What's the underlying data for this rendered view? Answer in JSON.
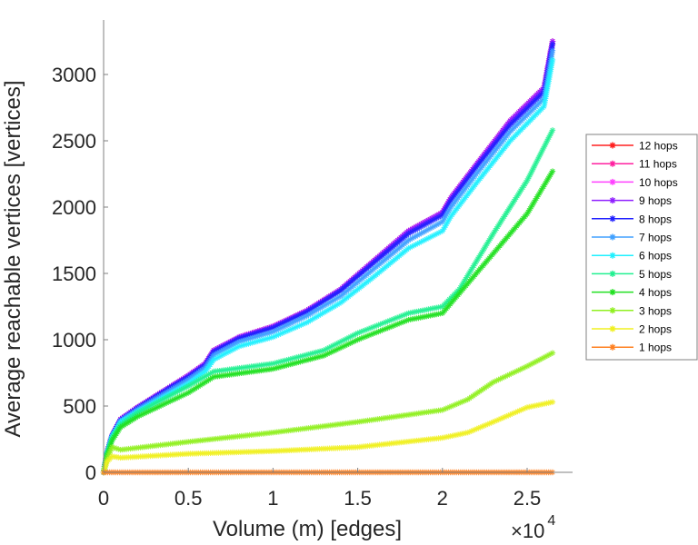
{
  "chart_data": {
    "type": "line",
    "title": "",
    "xlabel": "Volume (m) [edges]",
    "ylabel": "Average reachable vertices [vertices]",
    "x_multiplier_label": "×10",
    "x_multiplier_exp": "4",
    "xlim": [
      0,
      2.75
    ],
    "ylim": [
      0,
      3400
    ],
    "xticks": [
      0,
      0.5,
      1,
      1.5,
      2,
      2.5
    ],
    "xtick_labels": [
      "0",
      "0.5",
      "1",
      "1.5",
      "2",
      "2.5"
    ],
    "yticks": [
      0,
      500,
      1000,
      1500,
      2000,
      2500,
      3000
    ],
    "ytick_labels": [
      "0",
      "500",
      "1000",
      "1500",
      "2000",
      "2500",
      "3000"
    ],
    "grid": false,
    "legend_position": "right",
    "series": [
      {
        "name": "12 hops",
        "color": "#ff2020",
        "x": [
          0,
          0.02,
          0.05,
          0.1,
          0.2,
          0.3,
          0.4,
          0.5,
          0.6,
          0.65,
          0.8,
          1.0,
          1.2,
          1.4,
          1.6,
          1.8,
          2.0,
          2.05,
          2.2,
          2.4,
          2.6,
          2.65
        ],
        "y": [
          0,
          150,
          280,
          400,
          490,
          570,
          650,
          730,
          820,
          920,
          1020,
          1100,
          1220,
          1380,
          1600,
          1820,
          1960,
          2070,
          2320,
          2650,
          2900,
          3250
        ]
      },
      {
        "name": "11 hops",
        "color": "#ff20a0",
        "x": [
          0,
          0.02,
          0.05,
          0.1,
          0.2,
          0.3,
          0.4,
          0.5,
          0.6,
          0.65,
          0.8,
          1.0,
          1.2,
          1.4,
          1.6,
          1.8,
          2.0,
          2.05,
          2.2,
          2.4,
          2.6,
          2.65
        ],
        "y": [
          0,
          150,
          280,
          400,
          490,
          570,
          650,
          730,
          820,
          920,
          1020,
          1100,
          1220,
          1380,
          1600,
          1820,
          1960,
          2070,
          2320,
          2650,
          2900,
          3250
        ]
      },
      {
        "name": "10 hops",
        "color": "#ff40ff",
        "x": [
          0,
          0.02,
          0.05,
          0.1,
          0.2,
          0.3,
          0.4,
          0.5,
          0.6,
          0.65,
          0.8,
          1.0,
          1.2,
          1.4,
          1.6,
          1.8,
          2.0,
          2.05,
          2.2,
          2.4,
          2.6,
          2.65
        ],
        "y": [
          0,
          150,
          280,
          400,
          490,
          570,
          650,
          730,
          820,
          920,
          1020,
          1100,
          1220,
          1380,
          1600,
          1820,
          1960,
          2070,
          2320,
          2650,
          2900,
          3250
        ]
      },
      {
        "name": "9 hops",
        "color": "#9020ff",
        "x": [
          0,
          0.02,
          0.05,
          0.1,
          0.2,
          0.3,
          0.4,
          0.5,
          0.6,
          0.65,
          0.8,
          1.0,
          1.2,
          1.4,
          1.6,
          1.8,
          2.0,
          2.05,
          2.2,
          2.4,
          2.6,
          2.65
        ],
        "y": [
          0,
          150,
          280,
          400,
          490,
          570,
          650,
          730,
          820,
          920,
          1020,
          1100,
          1220,
          1380,
          1600,
          1820,
          1960,
          2070,
          2320,
          2650,
          2900,
          3250
        ]
      },
      {
        "name": "8 hops",
        "color": "#2020ff",
        "x": [
          0,
          0.02,
          0.05,
          0.1,
          0.2,
          0.3,
          0.4,
          0.5,
          0.6,
          0.65,
          0.8,
          1.0,
          1.2,
          1.4,
          1.6,
          1.8,
          2.0,
          2.05,
          2.2,
          2.4,
          2.6,
          2.65
        ],
        "y": [
          0,
          150,
          280,
          395,
          485,
          565,
          645,
          720,
          810,
          910,
          1010,
          1090,
          1210,
          1370,
          1585,
          1800,
          1940,
          2050,
          2300,
          2620,
          2870,
          3230
        ]
      },
      {
        "name": "7 hops",
        "color": "#40a0ff",
        "x": [
          0,
          0.02,
          0.05,
          0.1,
          0.2,
          0.3,
          0.4,
          0.5,
          0.6,
          0.65,
          0.8,
          1.0,
          1.2,
          1.4,
          1.6,
          1.8,
          2.0,
          2.05,
          2.2,
          2.4,
          2.6,
          2.65
        ],
        "y": [
          0,
          150,
          275,
          390,
          475,
          550,
          625,
          700,
          790,
          885,
          985,
          1060,
          1180,
          1330,
          1540,
          1750,
          1890,
          2000,
          2250,
          2570,
          2820,
          3180
        ]
      },
      {
        "name": "6 hops",
        "color": "#20f0ff",
        "x": [
          0,
          0.02,
          0.05,
          0.1,
          0.2,
          0.3,
          0.4,
          0.5,
          0.6,
          0.65,
          0.8,
          1.0,
          1.2,
          1.4,
          1.6,
          1.8,
          2.0,
          2.05,
          2.2,
          2.4,
          2.6,
          2.65
        ],
        "y": [
          0,
          145,
          270,
          380,
          460,
          530,
          600,
          670,
          760,
          850,
          950,
          1020,
          1130,
          1280,
          1480,
          1690,
          1820,
          1930,
          2180,
          2500,
          2760,
          3110
        ]
      },
      {
        "name": "5 hops",
        "color": "#20f090",
        "x": [
          0,
          0.02,
          0.05,
          0.1,
          0.2,
          0.5,
          0.65,
          1.0,
          1.3,
          1.5,
          1.8,
          2.0,
          2.1,
          2.3,
          2.5,
          2.65
        ],
        "y": [
          0,
          140,
          260,
          360,
          450,
          650,
          760,
          820,
          920,
          1050,
          1200,
          1250,
          1380,
          1800,
          2200,
          2580
        ]
      },
      {
        "name": "4 hops",
        "color": "#20e020",
        "x": [
          0,
          0.02,
          0.05,
          0.1,
          0.2,
          0.5,
          0.65,
          1.0,
          1.3,
          1.5,
          1.8,
          2.0,
          2.1,
          2.3,
          2.5,
          2.65
        ],
        "y": [
          0,
          130,
          240,
          340,
          420,
          600,
          720,
          780,
          880,
          1000,
          1150,
          1200,
          1350,
          1650,
          1950,
          2270
        ]
      },
      {
        "name": "3 hops",
        "color": "#90f020",
        "x": [
          0,
          0.02,
          0.05,
          0.1,
          0.5,
          1.0,
          1.5,
          2.0,
          2.15,
          2.3,
          2.5,
          2.65
        ],
        "y": [
          0,
          100,
          190,
          170,
          230,
          300,
          380,
          470,
          550,
          680,
          800,
          900
        ]
      },
      {
        "name": "2 hops",
        "color": "#f0f020",
        "x": [
          0,
          0.02,
          0.05,
          0.1,
          0.5,
          1.0,
          1.5,
          2.0,
          2.15,
          2.3,
          2.5,
          2.65
        ],
        "y": [
          0,
          80,
          120,
          110,
          140,
          160,
          190,
          260,
          300,
          380,
          490,
          530
        ]
      },
      {
        "name": "1 hops",
        "color": "#ff8020",
        "x": [
          0,
          0.5,
          1.0,
          1.5,
          2.0,
          2.5,
          2.65
        ],
        "y": [
          0,
          0,
          0,
          0,
          0,
          0,
          0
        ]
      }
    ]
  }
}
